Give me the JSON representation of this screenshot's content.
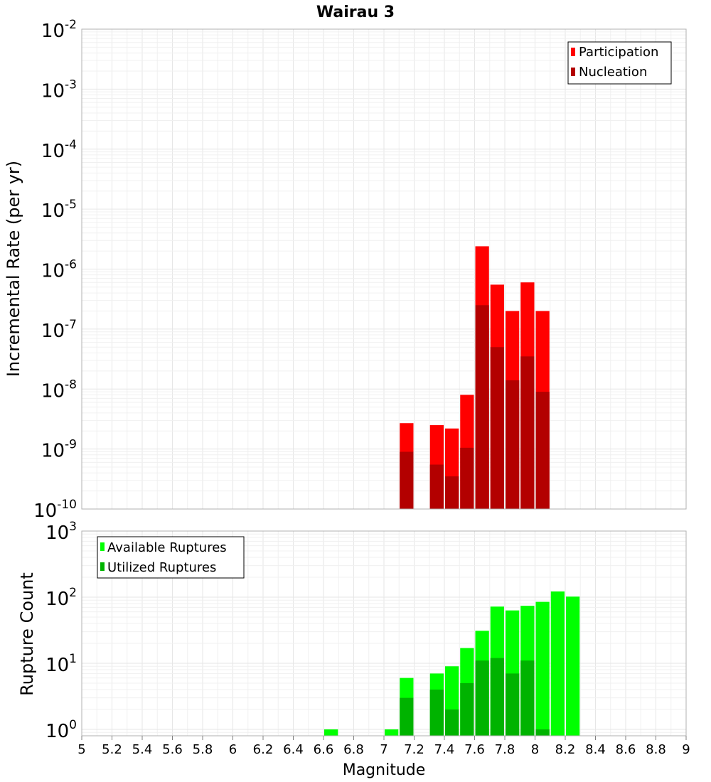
{
  "chart_data": [
    {
      "type": "bar",
      "title": "Wairau 3",
      "xlabel": "",
      "ylabel": "Incremental Rate (per yr)",
      "yscale": "log",
      "ylim": [
        1e-10,
        0.01
      ],
      "xlim": [
        5,
        9
      ],
      "y_tick_exponents": [
        "-10",
        "-9",
        "-8",
        "-7",
        "-6",
        "-5",
        "-4",
        "-3",
        "-2"
      ],
      "legend": {
        "position": "top-right",
        "entries": [
          {
            "label": "Participation",
            "color": "#ff0000"
          },
          {
            "label": "Nucleation",
            "color": "#b30000"
          }
        ]
      },
      "series": [
        {
          "name": "Participation",
          "color": "#ff0000",
          "x": [
            7.15,
            7.35,
            7.45,
            7.55,
            7.65,
            7.75,
            7.85,
            7.95,
            8.05
          ],
          "values": [
            2.7e-09,
            2.5e-09,
            2.2e-09,
            8e-09,
            2.4e-06,
            5.5e-07,
            2e-07,
            6e-07,
            2e-07
          ]
        },
        {
          "name": "Nucleation",
          "color": "#b30000",
          "x": [
            7.15,
            7.35,
            7.45,
            7.55,
            7.65,
            7.75,
            7.85,
            7.95,
            8.05
          ],
          "values": [
            9e-10,
            5.5e-10,
            3.5e-10,
            1.05e-09,
            2.5e-07,
            5e-08,
            1.4e-08,
            3.5e-08,
            9e-09
          ]
        }
      ]
    },
    {
      "type": "bar",
      "title": "",
      "xlabel": "Magnitude",
      "ylabel": "Rupture Count",
      "yscale": "log",
      "ylim": [
        0.8,
        1000
      ],
      "xlim": [
        5,
        9
      ],
      "x_ticks": [
        "5",
        "5.2",
        "5.4",
        "5.6",
        "5.8",
        "6",
        "6.2",
        "6.4",
        "6.6",
        "6.8",
        "7",
        "7.2",
        "7.4",
        "7.6",
        "7.8",
        "8",
        "8.2",
        "8.4",
        "8.6",
        "8.8",
        "9"
      ],
      "y_tick_exponents": [
        "0",
        "1",
        "2",
        "3"
      ],
      "legend": {
        "position": "top-left",
        "entries": [
          {
            "label": "Available Ruptures",
            "color": "#00ff00"
          },
          {
            "label": "Utilized Ruptures",
            "color": "#00b300"
          }
        ]
      },
      "series": [
        {
          "name": "Available Ruptures",
          "color": "#00ff00",
          "x": [
            6.65,
            7.05,
            7.15,
            7.35,
            7.45,
            7.55,
            7.65,
            7.75,
            7.85,
            7.95,
            8.05,
            8.15,
            8.25
          ],
          "values": [
            1,
            1,
            6,
            7,
            9,
            17,
            31,
            72,
            63,
            74,
            85,
            122,
            102
          ]
        },
        {
          "name": "Utilized Ruptures",
          "color": "#00b300",
          "x": [
            7.15,
            7.35,
            7.45,
            7.55,
            7.65,
            7.75,
            7.85,
            7.95,
            8.05
          ],
          "values": [
            3,
            4,
            2,
            5,
            11,
            12,
            7,
            11,
            1
          ]
        }
      ]
    }
  ]
}
